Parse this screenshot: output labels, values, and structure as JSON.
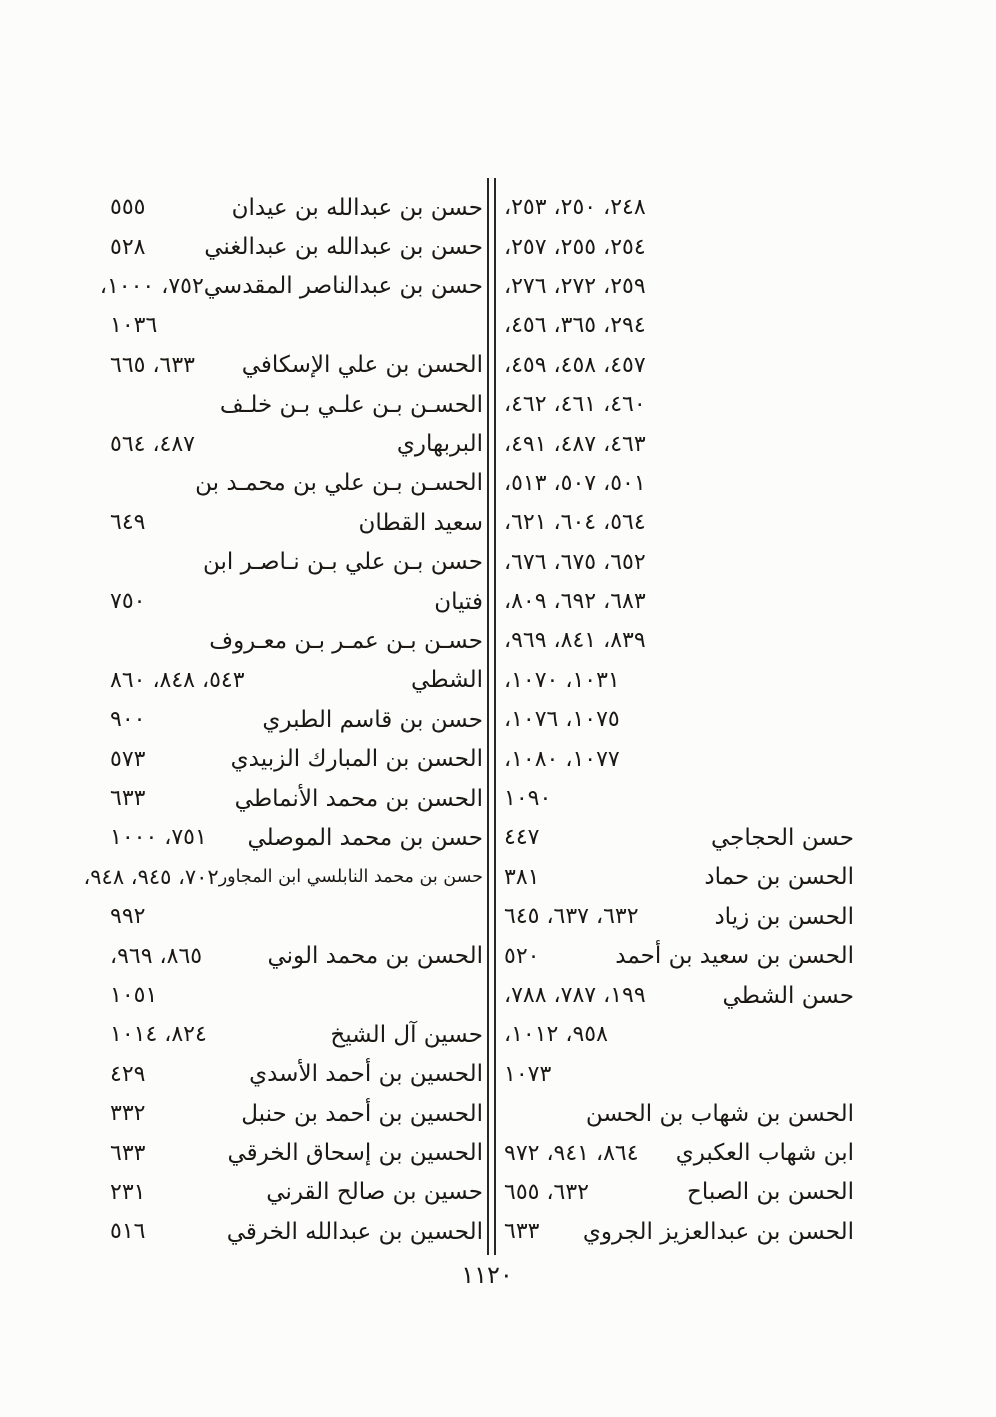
{
  "page_footer": {
    "page_number": "١١٢٠"
  },
  "index": {
    "right_column": {
      "lines": [
        {
          "name": "",
          "pages": "٢٤٨، ٢٥٠، ٢٥٣،"
        },
        {
          "name": "",
          "pages": "٢٥٤، ٢٥٥، ٢٥٧،"
        },
        {
          "name": "",
          "pages": "٢٥٩، ٢٧٢، ٢٧٦،"
        },
        {
          "name": "",
          "pages": "٢٩٤، ٣٦٥، ٤٥٦،"
        },
        {
          "name": "",
          "pages": "٤٥٧، ٤٥٨، ٤٥٩،"
        },
        {
          "name": "",
          "pages": "٤٦٠، ٤٦١، ٤٦٢،"
        },
        {
          "name": "",
          "pages": "٤٦٣، ٤٨٧، ٤٩١،"
        },
        {
          "name": "",
          "pages": "٥٠١، ٥٠٧، ٥١٣،"
        },
        {
          "name": "",
          "pages": "٥٦٤، ٦٠٤، ٦٢١،"
        },
        {
          "name": "",
          "pages": "٦٥٢، ٦٧٥، ٦٧٦،"
        },
        {
          "name": "",
          "pages": "٦٨٣، ٦٩٢، ٨٠٩،"
        },
        {
          "name": "",
          "pages": "٨٣٩، ٨٤١، ٩٦٩،"
        },
        {
          "name": "",
          "pages": "١٠٣١، ١٠٧٠،"
        },
        {
          "name": "",
          "pages": "١٠٧٥، ١٠٧٦،"
        },
        {
          "name": "",
          "pages": "١٠٧٧، ١٠٨٠،"
        },
        {
          "name": "",
          "pages": "١٠٩٠"
        },
        {
          "name": "حسن الحجاجي",
          "pages": "٤٤٧"
        },
        {
          "name": "الحسن بن حماد",
          "pages": "٣٨١"
        },
        {
          "name": "الحسن بن زياد",
          "pages": "٦٣٢، ٦٣٧، ٦٤٥"
        },
        {
          "name": "الحسن بن سعيد بن أحمد",
          "pages": "٥٢٠"
        },
        {
          "name": "حسن الشطي",
          "pages": "١٩٩، ٧٨٧، ٧٨٨،"
        },
        {
          "name": "",
          "pages": "٩٥٨، ١٠١٢،"
        },
        {
          "name": "",
          "pages": "١٠٧٣"
        },
        {
          "name": "الحسن بن شهاب بن الحسن",
          "pages": ""
        },
        {
          "name": "ابن شهاب العكبري",
          "pages": "٨٦٤، ٩٤١، ٩٧٢"
        },
        {
          "name": "الحسن بن الصباح",
          "pages": "٦٣٢، ٦٥٥"
        },
        {
          "name": "الحسن بن عبدالعزيز الجروي",
          "pages": "٦٣٣"
        }
      ]
    },
    "left_column": {
      "lines": [
        {
          "name": "حسن بن عبدالله بن عيدان",
          "pages": "٥٥٥"
        },
        {
          "name": "حسن بن عبدالله بن عبدالغني",
          "pages": "٥٢٨"
        },
        {
          "name": "حسن بن عبدالناصر المقدسي",
          "pages": "٧٥٢، ١٠٠٠،"
        },
        {
          "name": "",
          "pages": "١٠٣٦"
        },
        {
          "name": "الحسن بن علي الإسكافي",
          "pages": "٦٣٣، ٦٦٥"
        },
        {
          "name": "الحسـن بـن علـي بـن خلـف",
          "pages": ""
        },
        {
          "name": "البربهاري",
          "pages": "٤٨٧، ٥٦٤"
        },
        {
          "name": "الحسـن بـن علي بن محمـد بن",
          "pages": ""
        },
        {
          "name": "سعيد القطان",
          "pages": "٦٤٩"
        },
        {
          "name": "حسن بـن علي بـن نـاصـر ابن",
          "pages": ""
        },
        {
          "name": "فتيان",
          "pages": "٧٥٠"
        },
        {
          "name": "حسـن بـن عمـر بـن معـروف",
          "pages": ""
        },
        {
          "name": "الشطي",
          "pages": "٥٤٣، ٨٤٨، ٨٦٠"
        },
        {
          "name": "حسن بن قاسم الطبري",
          "pages": "٩٠٠"
        },
        {
          "name": "الحسن بن المبارك الزبيدي",
          "pages": "٥٧٣"
        },
        {
          "name": "الحسن بن محمد الأنماطي",
          "pages": "٦٣٣"
        },
        {
          "name": "حسن بن محمد الموصلي",
          "pages": "٧٥١، ١٠٠٠"
        },
        {
          "name": "حسن بن محمد النابلسي ابن المجاور",
          "pages": "٧٠٢، ٩٤٥، ٩٤٨،",
          "small": true
        },
        {
          "name": "",
          "pages": "٩٩٢"
        },
        {
          "name": "الحسن بن محمد الوني",
          "pages": "٨٦٥، ٩٦٩،"
        },
        {
          "name": "",
          "pages": "١٠٥١"
        },
        {
          "name": "حسين آل الشيخ",
          "pages": "٨٢٤، ١٠١٤"
        },
        {
          "name": "الحسين بن أحمد الأسدي",
          "pages": "٤٢٩"
        },
        {
          "name": "الحسين بن أحمد بن حنبل",
          "pages": "٣٣٢"
        },
        {
          "name": "الحسين بن إسحاق الخرقي",
          "pages": "٦٣٣"
        },
        {
          "name": "حسين بن صالح القرني",
          "pages": "٢٣١"
        },
        {
          "name": "الحسين بن عبدالله الخرقي",
          "pages": "٥١٦"
        }
      ]
    }
  }
}
